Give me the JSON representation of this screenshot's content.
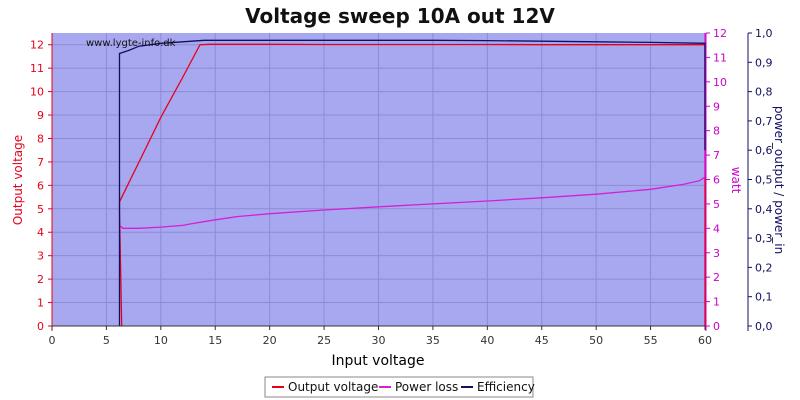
{
  "colors": {
    "plot_bg": "#a8a8f0",
    "grid": "#8c8cd4",
    "voltage": "#e8001a",
    "power": "#d41fd4",
    "efficiency": "#101060",
    "axis_red": "#e8001a",
    "axis_magenta": "#cc00cc",
    "axis_navy": "#101060"
  },
  "chart_data": {
    "type": "line",
    "title": "Voltage sweep 10A out 12V",
    "watermark": "www.lygte-info.dk",
    "xlabel": "Input voltage",
    "ylabel_left": "Output voltage",
    "ylabel_right1": "watt",
    "ylabel_right2": "power_output / power_in",
    "xlim": [
      0,
      60
    ],
    "ylim_left": [
      0,
      12.5
    ],
    "ylim_right1": [
      0,
      12
    ],
    "ylim_right2": [
      0,
      1.0
    ],
    "grid": true,
    "legend_position": "bottom",
    "x_ticks": [
      "0",
      "5",
      "10",
      "15",
      "20",
      "25",
      "30",
      "35",
      "40",
      "45",
      "50",
      "55",
      "60"
    ],
    "y_left_ticks": [
      "0",
      "1",
      "2",
      "3",
      "4",
      "5",
      "6",
      "7",
      "8",
      "9",
      "10",
      "11",
      "12"
    ],
    "y_right1_ticks": [
      "0",
      "1",
      "2",
      "3",
      "4",
      "5",
      "6",
      "7",
      "8",
      "9",
      "10",
      "11",
      "12"
    ],
    "y_right2_ticks": [
      "0,0",
      "0,1",
      "0,2",
      "0,3",
      "0,4",
      "0,5",
      "0,6",
      "0,7",
      "0,8",
      "0,9",
      "1,0"
    ],
    "series": [
      {
        "name": "Output voltage",
        "axis": "left",
        "x": [
          6.4,
          6.2,
          6.2,
          8,
          10,
          12,
          13.6,
          14.5,
          20,
          25,
          30,
          35,
          40,
          45,
          50,
          55,
          60,
          60
        ],
        "y": [
          0,
          4.9,
          5.3,
          7.0,
          8.9,
          10.6,
          12.0,
          12.02,
          12.02,
          12.01,
          12.01,
          12.01,
          12.01,
          12.0,
          12.0,
          12.0,
          12.0,
          0
        ]
      },
      {
        "name": "Power loss",
        "axis": "right1",
        "x": [
          6.3,
          6.5,
          8,
          10,
          12,
          13,
          15,
          17,
          20,
          25,
          30,
          35,
          40,
          45,
          50,
          55,
          58,
          59.5,
          60,
          60
        ],
        "y": [
          4.1,
          4.0,
          4.0,
          4.05,
          4.12,
          4.2,
          4.35,
          4.48,
          4.6,
          4.75,
          4.88,
          5.0,
          5.12,
          5.25,
          5.4,
          5.6,
          5.8,
          5.95,
          6.1,
          12
        ]
      },
      {
        "name": "Efficiency",
        "axis": "right2",
        "x": [
          6.2,
          6.2,
          7,
          8,
          10,
          12,
          14,
          15,
          20,
          25,
          30,
          35,
          40,
          45,
          50,
          55,
          60,
          60
        ],
        "y": [
          0,
          0.93,
          0.94,
          0.955,
          0.965,
          0.97,
          0.975,
          0.975,
          0.975,
          0.975,
          0.975,
          0.975,
          0.974,
          0.972,
          0.97,
          0.968,
          0.965,
          0.6
        ]
      }
    ]
  }
}
